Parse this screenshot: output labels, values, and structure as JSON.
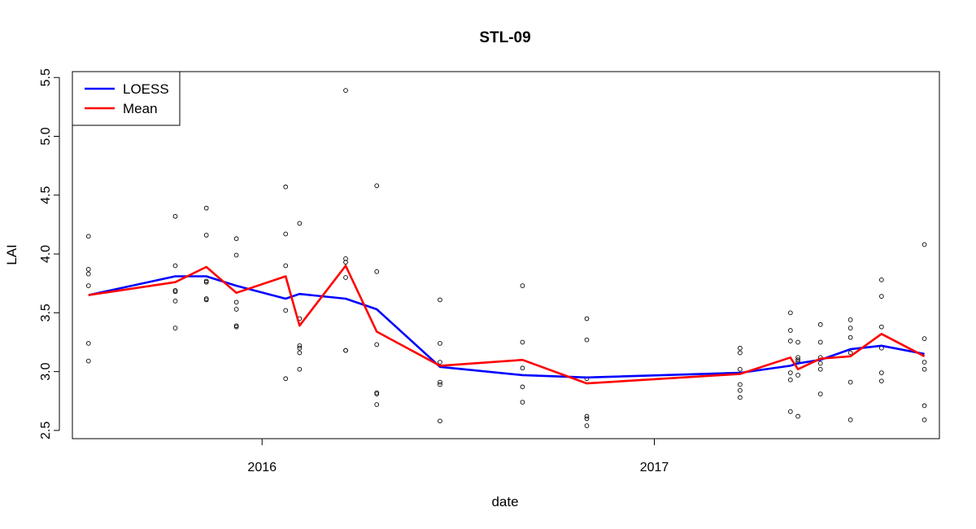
{
  "chart_data": {
    "type": "scatter",
    "title": "STL-09",
    "xlabel": "date",
    "ylabel": "LAI",
    "x_ticks": [
      "2016",
      "2017"
    ],
    "x_tick_dates": [
      "2016-01-01",
      "2017-01-01"
    ],
    "xlim": [
      "2015-07-08",
      "2017-09-24"
    ],
    "y_ticks": [
      "2.5",
      "3.0",
      "3.5",
      "4.0",
      "4.5",
      "5.0",
      "5.5"
    ],
    "ylim": [
      2.43,
      5.55
    ],
    "grid": false,
    "legend_position": "top-left",
    "legend": [
      {
        "label": "LOESS",
        "color": "#0000ff"
      },
      {
        "label": "Mean",
        "color": "#ff0000"
      }
    ],
    "points": [
      {
        "date": "2015-07-23",
        "values": [
          4.15,
          3.87,
          3.83,
          3.73,
          3.24,
          3.09
        ]
      },
      {
        "date": "2015-10-12",
        "values": [
          4.32,
          3.9,
          3.69,
          3.68,
          3.6,
          3.37
        ]
      },
      {
        "date": "2015-11-10",
        "values": [
          4.39,
          4.16,
          3.77,
          3.76,
          3.62,
          3.61
        ]
      },
      {
        "date": "2015-12-08",
        "values": [
          4.13,
          3.99,
          3.59,
          3.53,
          3.39,
          3.38
        ]
      },
      {
        "date": "2016-01-23",
        "values": [
          4.57,
          4.17,
          3.9,
          3.52,
          2.94
        ]
      },
      {
        "date": "2016-02-05",
        "values": [
          4.26,
          3.45,
          3.22,
          3.2,
          3.16,
          3.02
        ]
      },
      {
        "date": "2016-03-19",
        "values": [
          5.39,
          3.96,
          3.93,
          3.8,
          3.18,
          3.18
        ]
      },
      {
        "date": "2016-04-17",
        "values": [
          4.58,
          3.85,
          3.23,
          2.82,
          2.81,
          2.72
        ]
      },
      {
        "date": "2016-06-15",
        "values": [
          3.61,
          3.24,
          3.08,
          2.91,
          2.89,
          2.58
        ]
      },
      {
        "date": "2016-08-31",
        "values": [
          3.73,
          3.25,
          3.03,
          2.87,
          2.74
        ]
      },
      {
        "date": "2016-10-30",
        "values": [
          3.45,
          3.27,
          2.94,
          2.62,
          2.6,
          2.54
        ]
      },
      {
        "date": "2017-03-22",
        "values": [
          3.2,
          3.16,
          3.02,
          2.89,
          2.84,
          2.78
        ]
      },
      {
        "date": "2017-05-08",
        "values": [
          3.5,
          3.35,
          3.26,
          2.99,
          2.93,
          2.66
        ]
      },
      {
        "date": "2017-05-15",
        "values": [
          3.25,
          3.12,
          3.1,
          3.08,
          2.97,
          2.62
        ]
      },
      {
        "date": "2017-06-05",
        "values": [
          3.4,
          3.25,
          3.12,
          3.07,
          3.02,
          2.81
        ]
      },
      {
        "date": "2017-07-03",
        "values": [
          3.44,
          3.37,
          3.29,
          3.16,
          2.91,
          2.59
        ]
      },
      {
        "date": "2017-08-01",
        "values": [
          3.78,
          3.64,
          3.38,
          3.2,
          2.99,
          2.92
        ]
      },
      {
        "date": "2017-09-10",
        "values": [
          4.08,
          3.28,
          3.08,
          3.02,
          2.71,
          2.59
        ]
      }
    ],
    "series": [
      {
        "name": "LOESS",
        "color": "#0000ff",
        "x": [
          "2015-07-23",
          "2015-10-12",
          "2015-11-10",
          "2015-12-08",
          "2016-01-23",
          "2016-02-05",
          "2016-03-19",
          "2016-04-17",
          "2016-06-15",
          "2016-08-31",
          "2016-10-30",
          "2017-03-22",
          "2017-05-08",
          "2017-05-15",
          "2017-06-05",
          "2017-07-03",
          "2017-08-01",
          "2017-09-10"
        ],
        "values": [
          3.65,
          3.81,
          3.81,
          3.73,
          3.62,
          3.66,
          3.62,
          3.53,
          3.04,
          2.97,
          2.95,
          2.99,
          3.05,
          3.07,
          3.1,
          3.19,
          3.22,
          3.15
        ]
      },
      {
        "name": "Mean",
        "color": "#ff0000",
        "x": [
          "2015-07-23",
          "2015-10-12",
          "2015-11-10",
          "2015-12-08",
          "2016-01-23",
          "2016-02-05",
          "2016-03-19",
          "2016-04-17",
          "2016-06-15",
          "2016-08-31",
          "2016-10-30",
          "2017-03-22",
          "2017-05-08",
          "2017-05-15",
          "2017-06-05",
          "2017-07-03",
          "2017-08-01",
          "2017-09-10"
        ],
        "values": [
          3.65,
          3.76,
          3.89,
          3.67,
          3.81,
          3.39,
          3.9,
          3.34,
          3.05,
          3.1,
          2.9,
          2.98,
          3.12,
          3.02,
          3.11,
          3.13,
          3.32,
          3.13
        ]
      }
    ]
  }
}
